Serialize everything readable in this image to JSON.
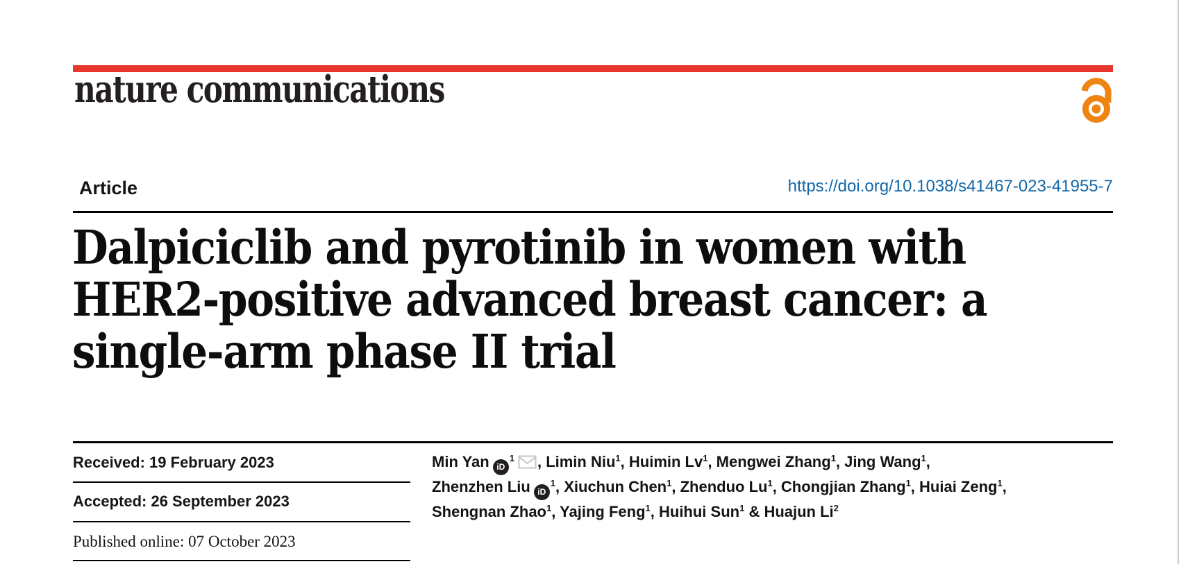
{
  "colors": {
    "brand_red": "#e8382d",
    "open_access_orange": "#ee8411",
    "doi_link_blue": "#1268a9",
    "rule_black": "#000000"
  },
  "masthead": {
    "logo_text": "nature communications",
    "open_access_icon": "open-access-padlock-icon"
  },
  "article_row": {
    "kicker": "Article",
    "doi": "https://doi.org/10.1038/s41467-023-41955-7"
  },
  "title": {
    "lines": [
      "Dalpiciclib and pyrotinib in women with",
      "HER2-positive advanced breast cancer: a",
      "single-arm phase II trial"
    ]
  },
  "dates": {
    "received": "Received: 19 February 2023",
    "accepted": "Accepted: 26 September 2023",
    "published": "Published online: 07 October 2023"
  },
  "icons": {
    "orcid_label": "iD",
    "orcid_name": "orcid-icon",
    "envelope_name": "email-envelope-icon"
  },
  "authors": {
    "lines": [
      [
        {
          "t": "text",
          "v": "Min Yan"
        },
        {
          "t": "icon",
          "v": "orcid"
        },
        {
          "t": "sup",
          "v": "1"
        },
        {
          "t": "icon",
          "v": "envelope"
        },
        {
          "t": "text",
          "v": ", Limin Niu"
        },
        {
          "t": "sup",
          "v": "1"
        },
        {
          "t": "text",
          "v": ", Huimin Lv"
        },
        {
          "t": "sup",
          "v": "1"
        },
        {
          "t": "text",
          "v": ", Mengwei Zhang"
        },
        {
          "t": "sup",
          "v": "1"
        },
        {
          "t": "text",
          "v": ", Jing Wang"
        },
        {
          "t": "sup",
          "v": "1"
        },
        {
          "t": "text",
          "v": ","
        }
      ],
      [
        {
          "t": "text",
          "v": "Zhenzhen Liu"
        },
        {
          "t": "icon",
          "v": "orcid"
        },
        {
          "t": "sup",
          "v": "1"
        },
        {
          "t": "text",
          "v": ", Xiuchun Chen"
        },
        {
          "t": "sup",
          "v": "1"
        },
        {
          "t": "text",
          "v": ", Zhenduo Lu"
        },
        {
          "t": "sup",
          "v": "1"
        },
        {
          "t": "text",
          "v": ", Chongjian Zhang"
        },
        {
          "t": "sup",
          "v": "1"
        },
        {
          "t": "text",
          "v": ", Huiai Zeng"
        },
        {
          "t": "sup",
          "v": "1"
        },
        {
          "t": "text",
          "v": ","
        }
      ],
      [
        {
          "t": "text",
          "v": "Shengnan Zhao"
        },
        {
          "t": "sup",
          "v": "1"
        },
        {
          "t": "text",
          "v": ", Yajing Feng"
        },
        {
          "t": "sup",
          "v": "1"
        },
        {
          "t": "text",
          "v": ", Huihui Sun"
        },
        {
          "t": "sup",
          "v": "1"
        },
        {
          "t": "text",
          "v": " & Huajun Li"
        },
        {
          "t": "sup",
          "v": "2"
        }
      ]
    ]
  }
}
